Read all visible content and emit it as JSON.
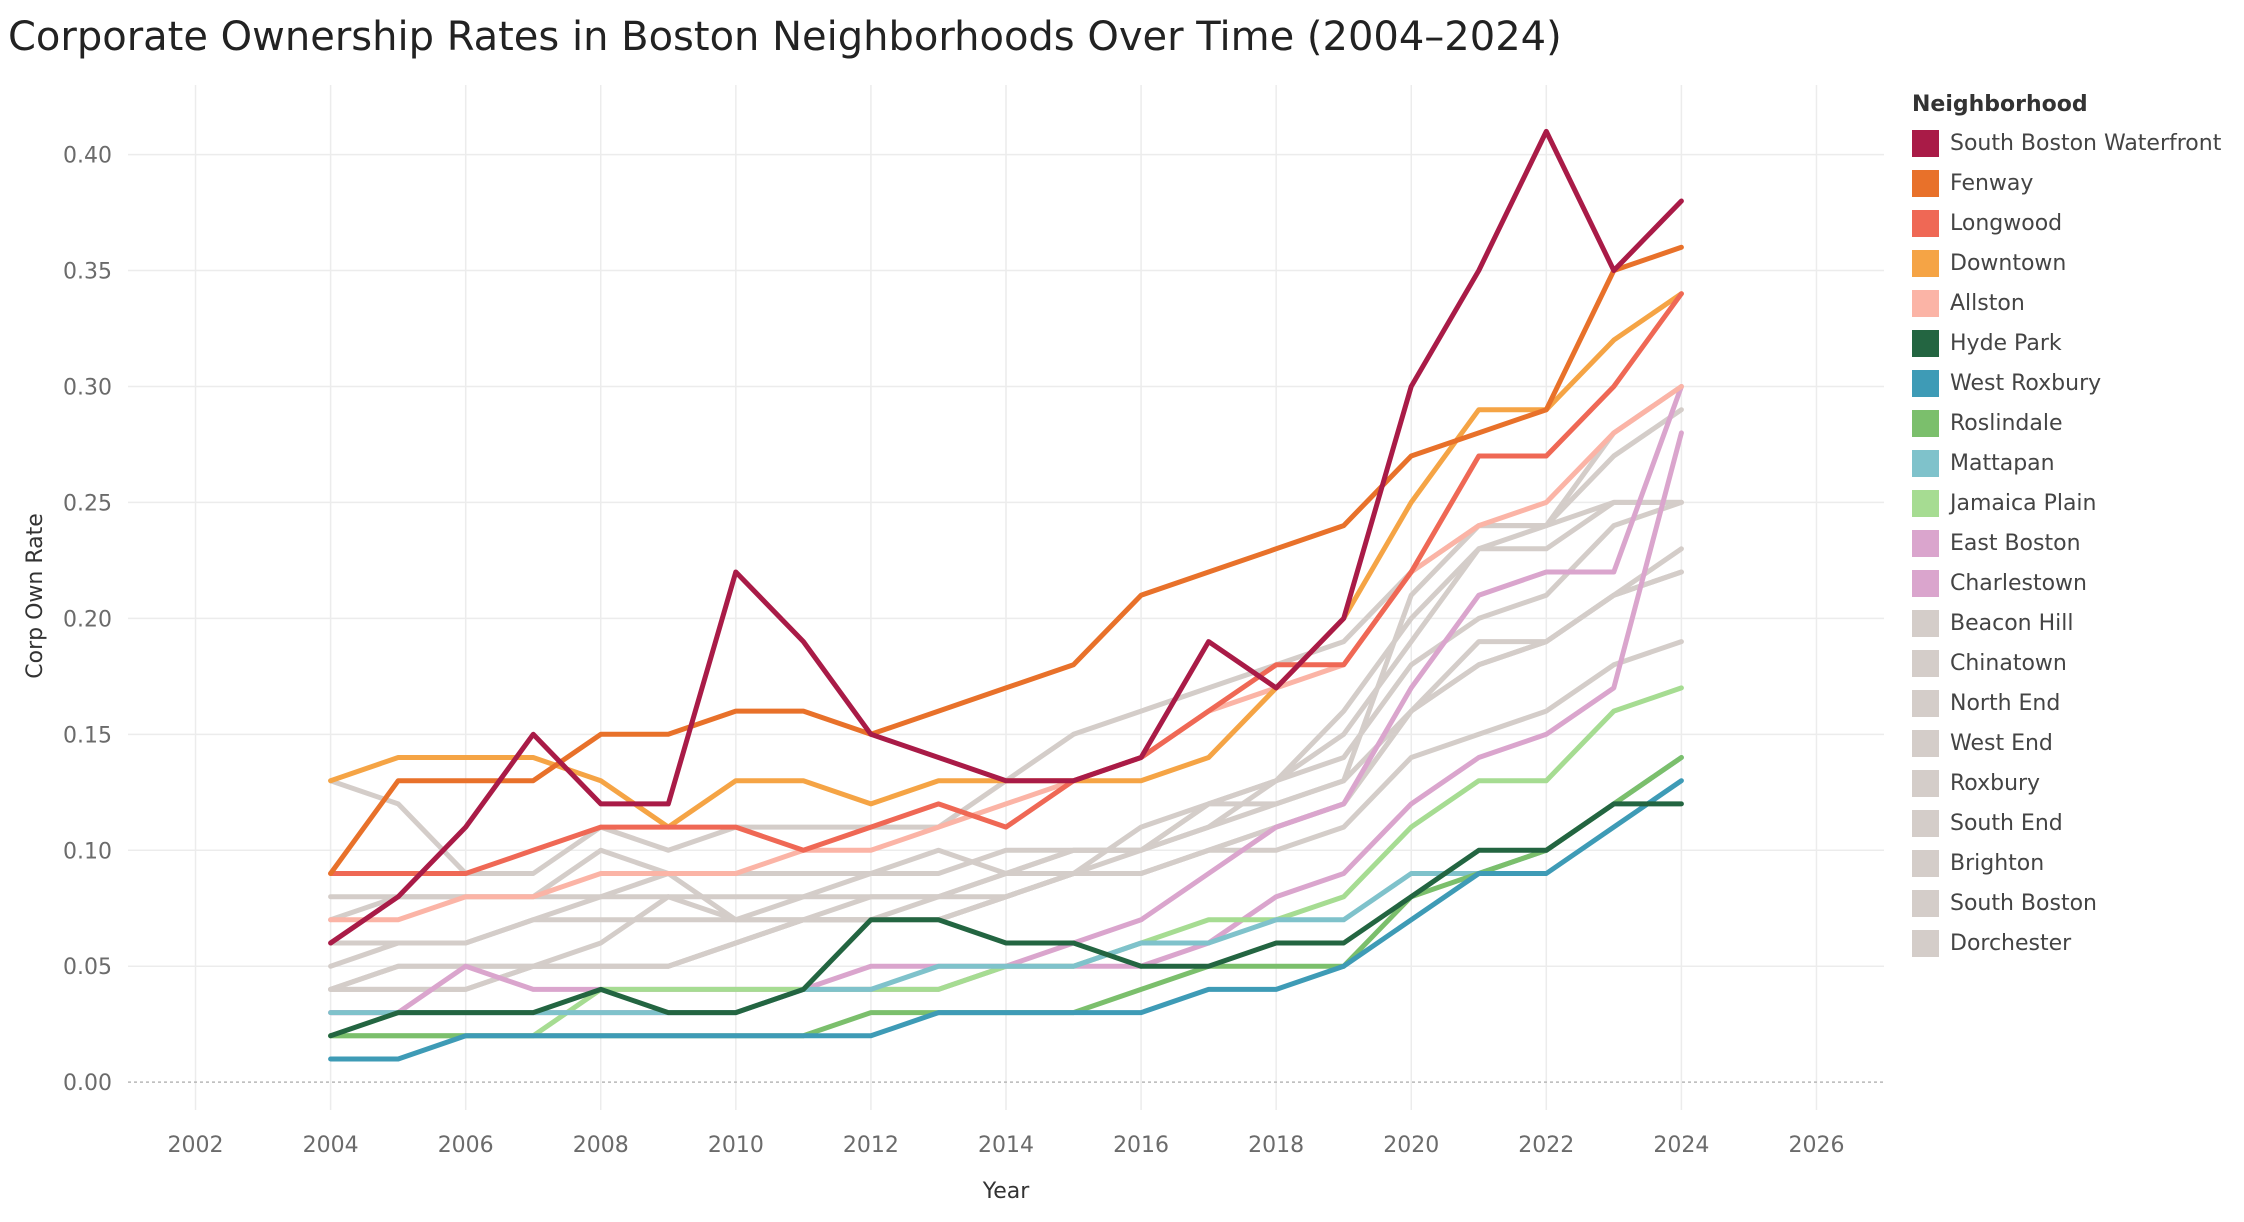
{
  "chart_data": {
    "type": "line",
    "title": "Corporate Ownership Rates in Boston Neighborhoods Over Time (2004–2024)",
    "xlabel": "Year",
    "ylabel": "Corp Own Rate",
    "xlim": [
      2001,
      2027
    ],
    "ylim": [
      -0.012,
      0.43
    ],
    "x_ticks": [
      2002,
      2004,
      2006,
      2008,
      2010,
      2012,
      2014,
      2016,
      2018,
      2020,
      2022,
      2024,
      2026
    ],
    "y_ticks": [
      0.0,
      0.05,
      0.1,
      0.15,
      0.2,
      0.25,
      0.3,
      0.35,
      0.4
    ],
    "y_tick_labels": [
      "0.00",
      "0.05",
      "0.10",
      "0.15",
      "0.20",
      "0.25",
      "0.30",
      "0.35",
      "0.40"
    ],
    "grid": true,
    "legend_title": "Neighborhood",
    "legend_position": "right",
    "x": [
      2004,
      2005,
      2006,
      2007,
      2008,
      2009,
      2010,
      2011,
      2012,
      2013,
      2014,
      2015,
      2016,
      2017,
      2018,
      2019,
      2020,
      2021,
      2022,
      2023,
      2024
    ],
    "series": [
      {
        "name": "South Boston Waterfront",
        "color": "#a91b47",
        "values": [
          0.06,
          0.08,
          0.11,
          0.15,
          0.12,
          0.12,
          0.22,
          0.19,
          0.15,
          0.14,
          0.13,
          0.13,
          0.14,
          0.19,
          0.17,
          0.2,
          0.3,
          0.35,
          0.41,
          0.35,
          0.38
        ]
      },
      {
        "name": "Fenway",
        "color": "#e8712a",
        "values": [
          0.09,
          0.13,
          0.13,
          0.13,
          0.15,
          0.15,
          0.16,
          0.16,
          0.15,
          0.16,
          0.17,
          0.18,
          0.21,
          0.22,
          0.23,
          0.24,
          0.27,
          0.28,
          0.29,
          0.35,
          0.36
        ]
      },
      {
        "name": "Longwood",
        "color": "#ef6855",
        "values": [
          0.09,
          0.09,
          0.09,
          0.1,
          0.11,
          0.11,
          0.11,
          0.1,
          0.11,
          0.12,
          0.11,
          0.13,
          0.14,
          0.16,
          0.18,
          0.18,
          0.22,
          0.27,
          0.27,
          0.3,
          0.34
        ]
      },
      {
        "name": "Downtown",
        "color": "#f5a445",
        "values": [
          0.13,
          0.14,
          0.14,
          0.14,
          0.13,
          0.11,
          0.13,
          0.13,
          0.12,
          0.13,
          0.13,
          0.13,
          0.13,
          0.14,
          0.17,
          0.2,
          0.25,
          0.29,
          0.29,
          0.32,
          0.34
        ]
      },
      {
        "name": "Allston",
        "color": "#fbb4a6",
        "values": [
          0.07,
          0.07,
          0.08,
          0.08,
          0.09,
          0.09,
          0.09,
          0.1,
          0.1,
          0.11,
          0.12,
          0.13,
          0.14,
          0.16,
          0.17,
          0.18,
          0.22,
          0.24,
          0.25,
          0.28,
          0.3
        ]
      },
      {
        "name": "Hyde Park",
        "color": "#236541",
        "values": [
          0.02,
          0.03,
          0.03,
          0.03,
          0.04,
          0.03,
          0.03,
          0.04,
          0.07,
          0.07,
          0.06,
          0.06,
          0.05,
          0.05,
          0.06,
          0.06,
          0.08,
          0.1,
          0.1,
          0.12,
          0.12
        ]
      },
      {
        "name": "West Roxbury",
        "color": "#3e9bb6",
        "values": [
          0.01,
          0.01,
          0.02,
          0.02,
          0.02,
          0.02,
          0.02,
          0.02,
          0.02,
          0.03,
          0.03,
          0.03,
          0.03,
          0.04,
          0.04,
          0.05,
          0.07,
          0.09,
          0.09,
          0.11,
          0.13
        ]
      },
      {
        "name": "Roslindale",
        "color": "#7bbf6c",
        "values": [
          0.02,
          0.02,
          0.02,
          0.02,
          0.02,
          0.02,
          0.02,
          0.02,
          0.03,
          0.03,
          0.03,
          0.03,
          0.04,
          0.05,
          0.05,
          0.05,
          0.08,
          0.09,
          0.1,
          0.12,
          0.14
        ]
      },
      {
        "name": "Mattapan",
        "color": "#7fc2cb",
        "values": [
          0.03,
          0.03,
          0.03,
          0.03,
          0.03,
          0.03,
          0.03,
          0.04,
          0.04,
          0.05,
          0.05,
          0.05,
          0.06,
          0.06,
          0.07,
          0.07,
          0.09,
          0.09,
          0.1,
          0.12,
          0.14
        ]
      },
      {
        "name": "Jamaica Plain",
        "color": "#a6dc92",
        "values": [
          0.02,
          0.02,
          0.02,
          0.02,
          0.04,
          0.04,
          0.04,
          0.04,
          0.04,
          0.04,
          0.05,
          0.05,
          0.06,
          0.07,
          0.07,
          0.08,
          0.11,
          0.13,
          0.13,
          0.16,
          0.17
        ]
      },
      {
        "name": "East Boston",
        "color": "#daa5cd",
        "values": [
          0.03,
          0.03,
          0.05,
          0.04,
          0.04,
          0.04,
          0.04,
          0.04,
          0.05,
          0.05,
          0.05,
          0.06,
          0.07,
          0.09,
          0.11,
          0.12,
          0.17,
          0.21,
          0.22,
          0.22,
          0.3
        ]
      },
      {
        "name": "Charlestown",
        "color": "#daa5cd",
        "values": [
          0.03,
          0.03,
          0.03,
          0.03,
          0.03,
          0.03,
          0.03,
          0.04,
          0.04,
          0.04,
          0.05,
          0.05,
          0.05,
          0.06,
          0.08,
          0.09,
          0.12,
          0.14,
          0.15,
          0.17,
          0.28
        ]
      },
      {
        "name": "Beacon Hill",
        "color": "#d4cdc9",
        "values": [
          0.13,
          0.12,
          0.09,
          0.09,
          0.11,
          0.1,
          0.11,
          0.11,
          0.11,
          0.11,
          0.13,
          0.15,
          0.16,
          0.17,
          0.18,
          0.19,
          0.22,
          0.24,
          0.24,
          0.27,
          0.29
        ]
      },
      {
        "name": "Chinatown",
        "color": "#d4cdc9",
        "values": [
          0.08,
          0.08,
          0.08,
          0.08,
          0.08,
          0.08,
          0.08,
          0.08,
          0.09,
          0.1,
          0.09,
          0.1,
          0.1,
          0.12,
          0.12,
          0.13,
          0.21,
          0.24,
          0.24,
          0.28,
          0.3
        ]
      },
      {
        "name": "North End",
        "color": "#d4cdc9",
        "values": [
          0.07,
          0.08,
          0.08,
          0.08,
          0.1,
          0.09,
          0.09,
          0.09,
          0.09,
          0.09,
          0.1,
          0.1,
          0.1,
          0.11,
          0.13,
          0.16,
          0.2,
          0.23,
          0.24,
          0.25,
          0.25
        ]
      },
      {
        "name": "West End",
        "color": "#d4cdc9",
        "values": [
          0.06,
          0.06,
          0.06,
          0.07,
          0.07,
          0.07,
          0.07,
          0.08,
          0.08,
          0.08,
          0.09,
          0.1,
          0.1,
          0.12,
          0.13,
          0.15,
          0.19,
          0.23,
          0.23,
          0.25,
          0.25
        ]
      },
      {
        "name": "Roxbury",
        "color": "#d4cdc9",
        "values": [
          0.05,
          0.06,
          0.06,
          0.07,
          0.08,
          0.09,
          0.07,
          0.07,
          0.07,
          0.08,
          0.09,
          0.09,
          0.11,
          0.12,
          0.13,
          0.14,
          0.18,
          0.2,
          0.21,
          0.24,
          0.25
        ]
      },
      {
        "name": "South End",
        "color": "#d4cdc9",
        "values": [
          0.04,
          0.05,
          0.05,
          0.05,
          0.06,
          0.08,
          0.07,
          0.07,
          0.08,
          0.08,
          0.08,
          0.09,
          0.1,
          0.11,
          0.12,
          0.13,
          0.16,
          0.18,
          0.19,
          0.21,
          0.22
        ]
      },
      {
        "name": "Brighton",
        "color": "#d4cdc9",
        "values": [
          0.04,
          0.04,
          0.04,
          0.05,
          0.05,
          0.05,
          0.06,
          0.07,
          0.07,
          0.07,
          0.08,
          0.09,
          0.09,
          0.1,
          0.11,
          0.12,
          0.16,
          0.19,
          0.19,
          0.21,
          0.23
        ]
      },
      {
        "name": "South Boston",
        "color": "#d4cdc9",
        "values": [
          0.04,
          0.05,
          0.05,
          0.05,
          0.05,
          0.05,
          0.06,
          0.07,
          0.07,
          0.07,
          0.08,
          0.09,
          0.09,
          0.1,
          0.1,
          0.11,
          0.14,
          0.15,
          0.16,
          0.18,
          0.19
        ]
      },
      {
        "name": "Dorchester",
        "color": "#d4cdc9",
        "values": [
          0.04,
          0.04,
          0.04,
          0.05,
          0.05,
          0.05,
          0.06,
          0.07,
          0.07,
          0.07,
          0.08,
          0.09,
          0.09,
          0.1,
          0.11,
          0.12,
          0.16,
          0.18,
          0.19,
          0.21,
          0.22
        ]
      }
    ]
  }
}
